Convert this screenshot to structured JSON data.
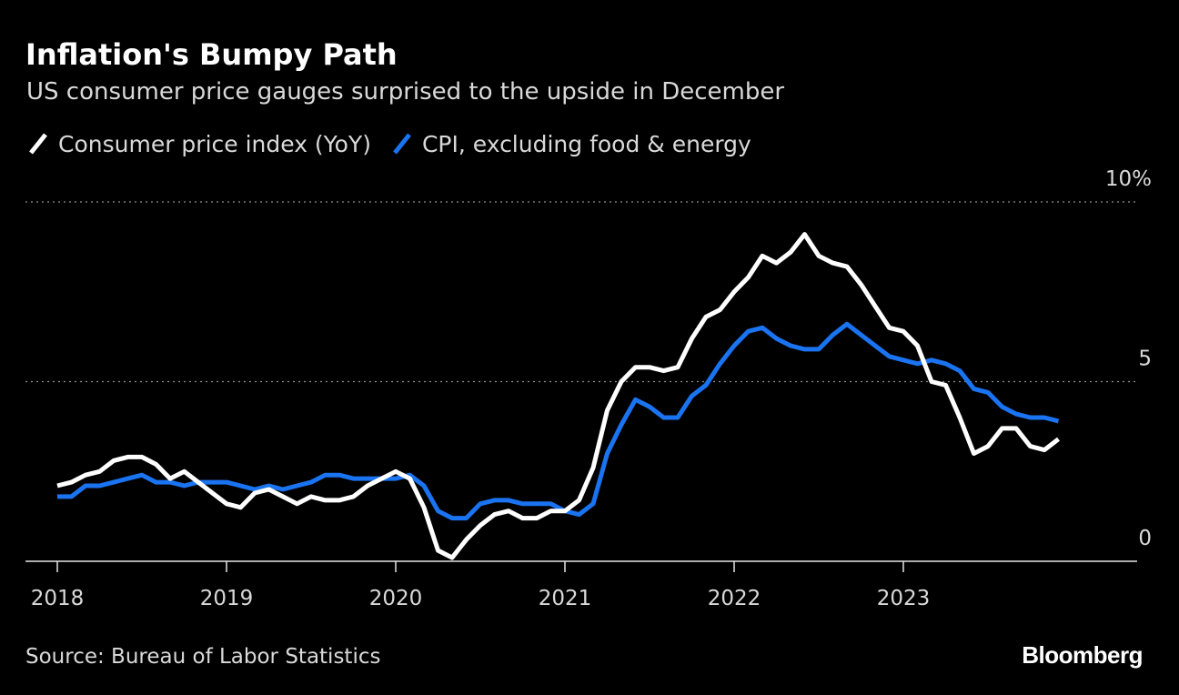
{
  "title": "Inflation's Bumpy Path",
  "subtitle": "US consumer price gauges surprised to the upside in December",
  "source": "Source: Bureau of Labor Statistics",
  "brand": "Bloomberg",
  "colors": {
    "background": "#000000",
    "cpi": "#ffffff",
    "core": "#1a73f0",
    "grid": "#8c8c8c",
    "text": "#d9d9d9"
  },
  "chart_data": {
    "type": "line",
    "title": "Inflation's Bumpy Path",
    "xlabel": "",
    "ylabel": "",
    "x_start": "2018-01",
    "x_end": "2023-12",
    "frequency": "monthly",
    "xticks": [
      "2018",
      "2019",
      "2020",
      "2021",
      "2022",
      "2023"
    ],
    "yticks": [
      {
        "value": 0,
        "label": "0"
      },
      {
        "value": 5,
        "label": "5"
      },
      {
        "value": 10,
        "label": "10%"
      }
    ],
    "ylim": [
      0,
      10
    ],
    "grid": "horizontal dotted",
    "legend": "top-left",
    "series": [
      {
        "name": "Consumer price index (YoY)",
        "color": "#ffffff",
        "values": [
          2.1,
          2.2,
          2.4,
          2.5,
          2.8,
          2.9,
          2.9,
          2.7,
          2.3,
          2.5,
          2.2,
          1.9,
          1.6,
          1.5,
          1.9,
          2.0,
          1.8,
          1.6,
          1.8,
          1.7,
          1.7,
          1.8,
          2.1,
          2.3,
          2.5,
          2.3,
          1.5,
          0.3,
          0.1,
          0.6,
          1.0,
          1.3,
          1.4,
          1.2,
          1.2,
          1.4,
          1.4,
          1.7,
          2.6,
          4.2,
          5.0,
          5.4,
          5.4,
          5.3,
          5.4,
          6.2,
          6.8,
          7.0,
          7.5,
          7.9,
          8.5,
          8.3,
          8.6,
          9.1,
          8.5,
          8.3,
          8.2,
          7.7,
          7.1,
          6.5,
          6.4,
          6.0,
          5.0,
          4.9,
          4.0,
          3.0,
          3.2,
          3.7,
          3.7,
          3.2,
          3.1,
          3.4
        ]
      },
      {
        "name": "CPI, excluding food & energy",
        "color": "#1a73f0",
        "values": [
          1.8,
          1.8,
          2.1,
          2.1,
          2.2,
          2.3,
          2.4,
          2.2,
          2.2,
          2.1,
          2.2,
          2.2,
          2.2,
          2.1,
          2.0,
          2.1,
          2.0,
          2.1,
          2.2,
          2.4,
          2.4,
          2.3,
          2.3,
          2.3,
          2.3,
          2.4,
          2.1,
          1.4,
          1.2,
          1.2,
          1.6,
          1.7,
          1.7,
          1.6,
          1.6,
          1.6,
          1.4,
          1.3,
          1.6,
          3.0,
          3.8,
          4.5,
          4.3,
          4.0,
          4.0,
          4.6,
          4.9,
          5.5,
          6.0,
          6.4,
          6.5,
          6.2,
          6.0,
          5.9,
          5.9,
          6.3,
          6.6,
          6.3,
          6.0,
          5.7,
          5.6,
          5.5,
          5.6,
          5.5,
          5.3,
          4.8,
          4.7,
          4.3,
          4.1,
          4.0,
          4.0,
          3.9
        ]
      }
    ]
  }
}
